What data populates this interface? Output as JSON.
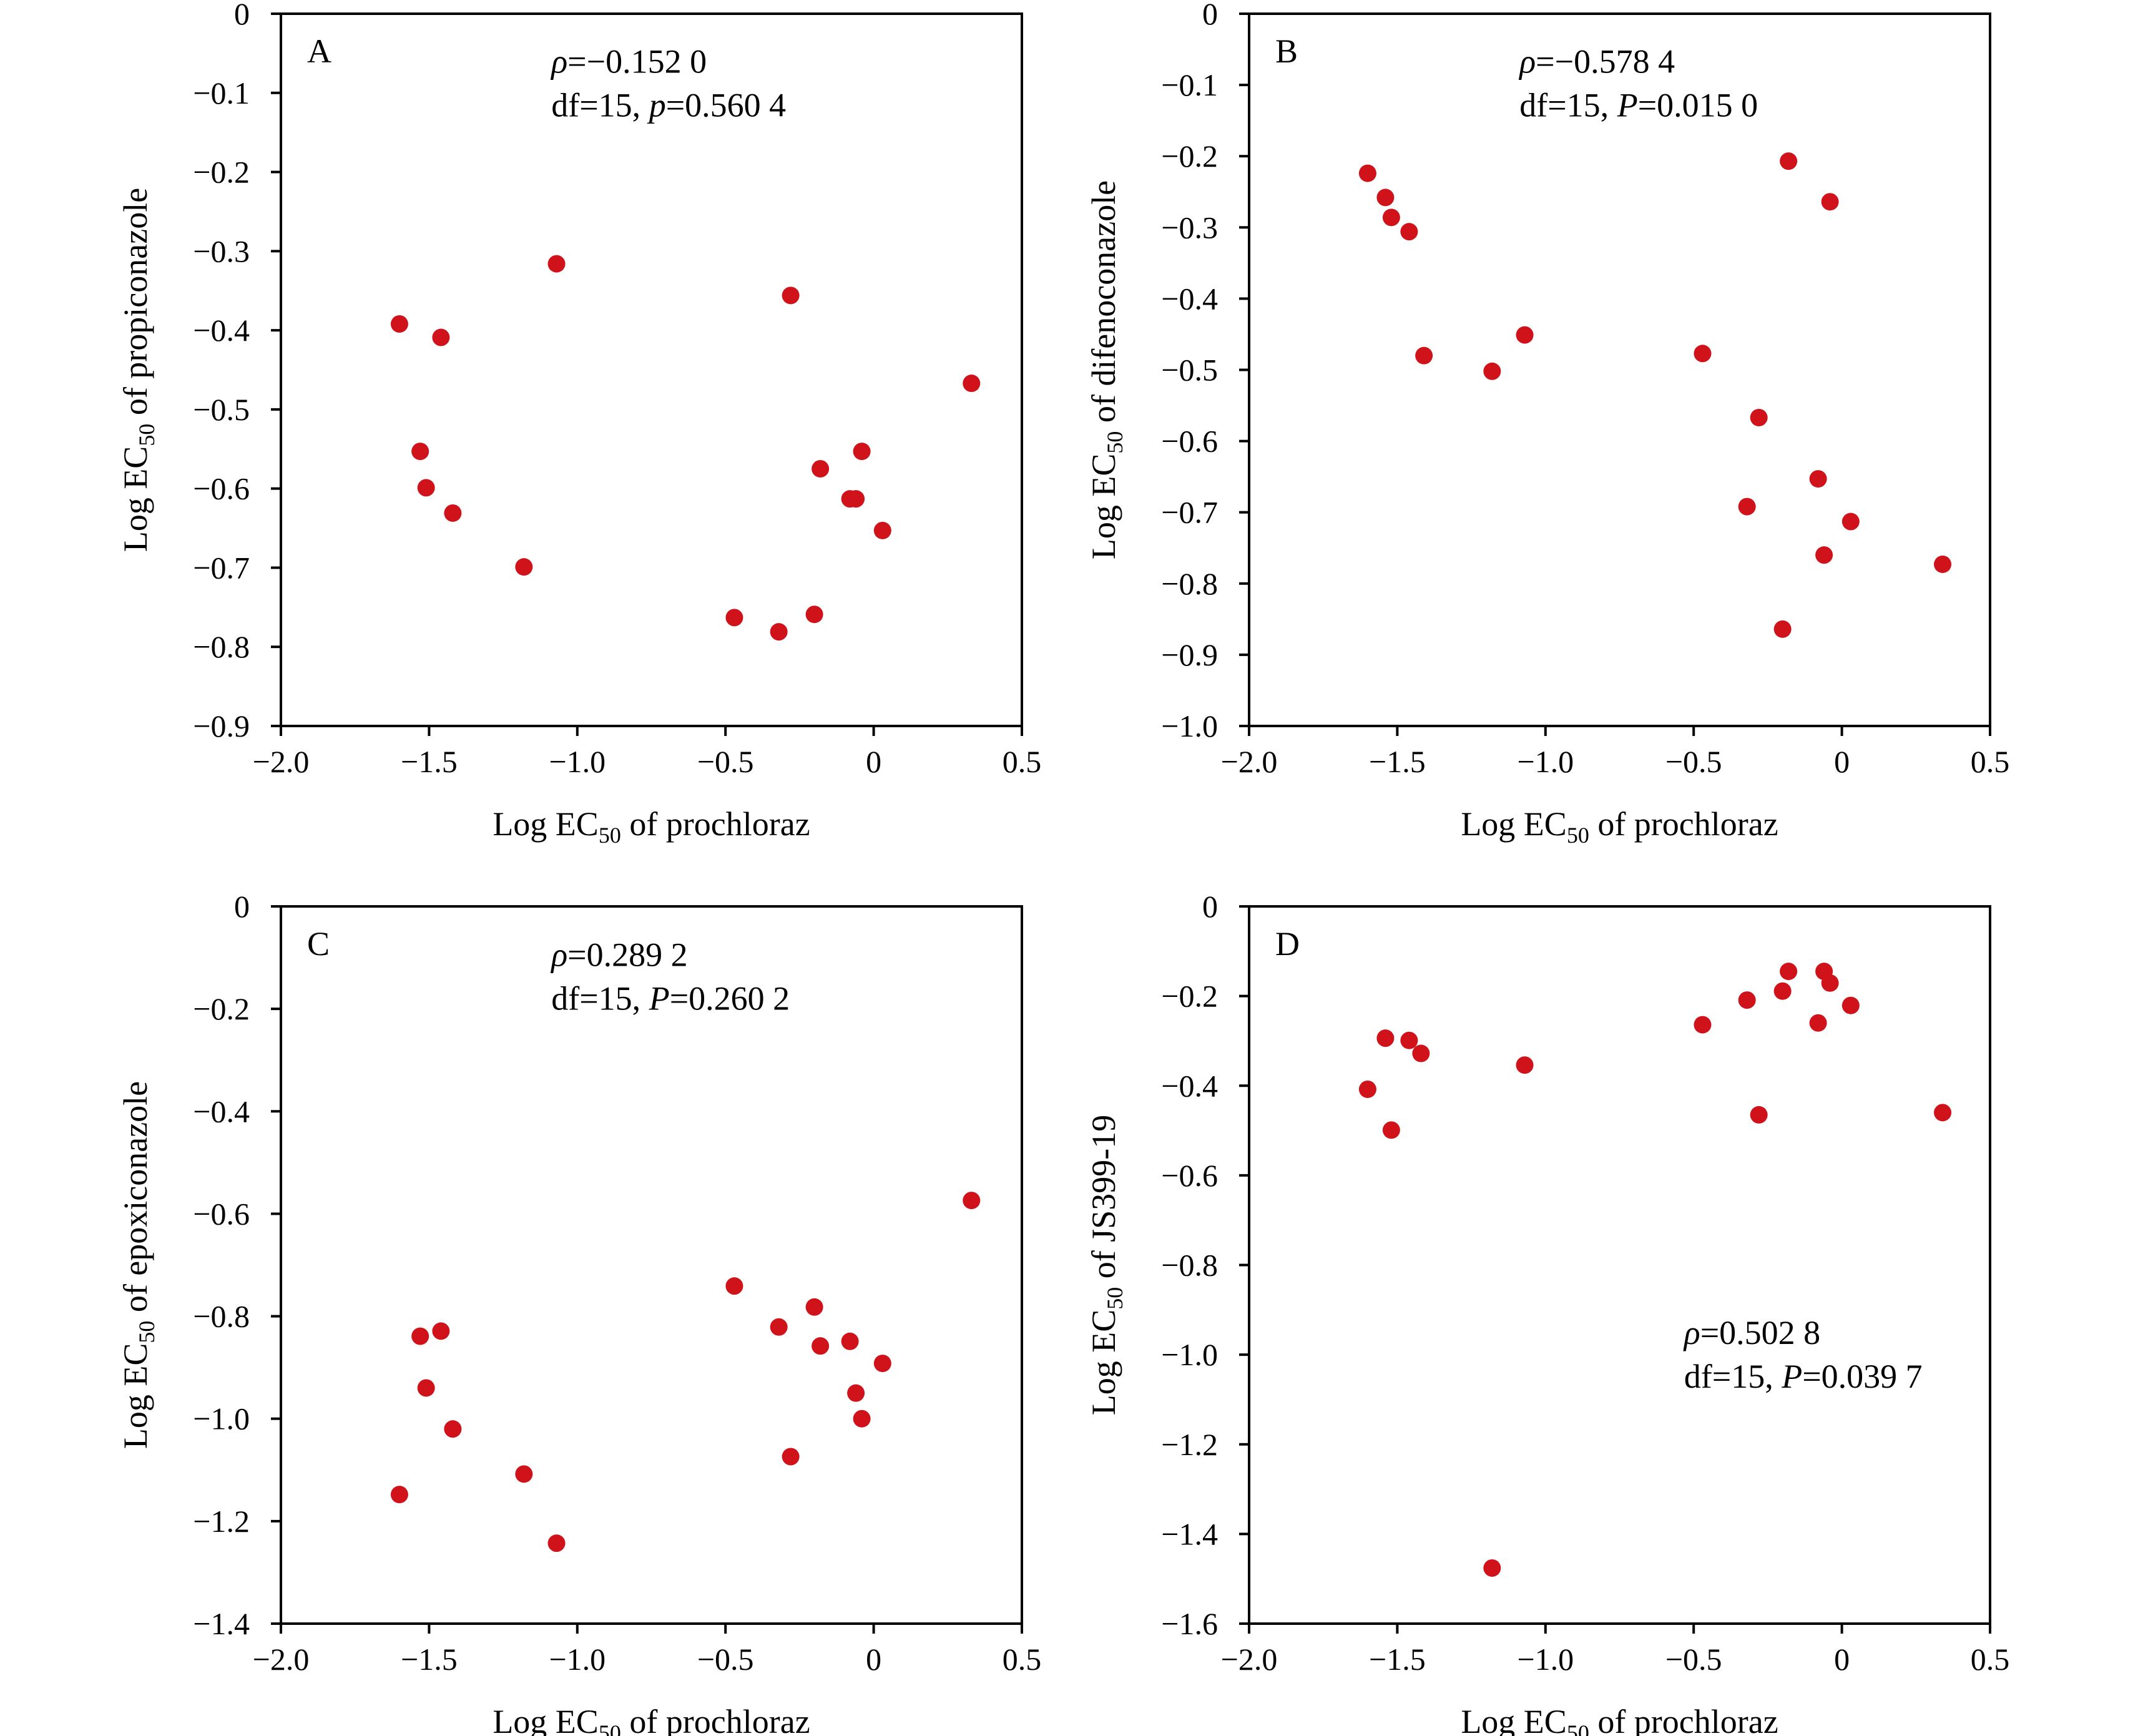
{
  "point_color": "#d0121b",
  "chart_data": [
    {
      "type": "scatter",
      "panel": "A",
      "xlabel": "Log EC50 of prochloraz",
      "ylabel": "Log EC50 of propiconazole",
      "xlim": [
        -2.0,
        0.5
      ],
      "ylim": [
        -0.9,
        0
      ],
      "xticks": [
        -2.0,
        -1.5,
        -1.0,
        -0.5,
        0,
        0.5
      ],
      "xtick_labels": [
        "−2.0",
        "−1.5",
        "−1.0",
        "−0.5",
        "0",
        "0.5"
      ],
      "yticks": [
        0,
        -0.1,
        -0.2,
        -0.3,
        -0.4,
        -0.5,
        -0.6,
        -0.7,
        -0.8,
        -0.9
      ],
      "ytick_labels": [
        "0",
        "−0.1",
        "−0.2",
        "−0.3",
        "−0.4",
        "−0.5",
        "−0.6",
        "−0.7",
        "−0.8",
        "−0.9"
      ],
      "stats": {
        "rho_sym": "ρ",
        "rho_rest": "=−0.152 0",
        "df_text": "df=15, ",
        "p_sym": "p",
        "p_rest": "=0.560 4",
        "anchor": "top-center"
      },
      "points": [
        {
          "x": -1.6,
          "y": -0.392
        },
        {
          "x": -1.46,
          "y": -0.409
        },
        {
          "x": -1.53,
          "y": -0.553
        },
        {
          "x": -1.51,
          "y": -0.599
        },
        {
          "x": -1.42,
          "y": -0.631
        },
        {
          "x": -1.18,
          "y": -0.699
        },
        {
          "x": -1.07,
          "y": -0.316
        },
        {
          "x": -0.47,
          "y": -0.763
        },
        {
          "x": -0.32,
          "y": -0.781
        },
        {
          "x": -0.28,
          "y": -0.356
        },
        {
          "x": -0.2,
          "y": -0.759
        },
        {
          "x": -0.18,
          "y": -0.575
        },
        {
          "x": -0.08,
          "y": -0.613
        },
        {
          "x": -0.06,
          "y": -0.613
        },
        {
          "x": -0.04,
          "y": -0.553
        },
        {
          "x": 0.03,
          "y": -0.653
        },
        {
          "x": 0.33,
          "y": -0.467
        }
      ]
    },
    {
      "type": "scatter",
      "panel": "B",
      "xlabel": "Log EC50 of prochloraz",
      "ylabel": "Log EC50 of difenoconazole",
      "xlim": [
        -2.0,
        0.5
      ],
      "ylim": [
        -1.0,
        0
      ],
      "xticks": [
        -2.0,
        -1.5,
        -1.0,
        -0.5,
        0,
        0.5
      ],
      "xtick_labels": [
        "−2.0",
        "−1.5",
        "−1.0",
        "−0.5",
        "0",
        "0.5"
      ],
      "yticks": [
        0,
        -0.1,
        -0.2,
        -0.3,
        -0.4,
        -0.5,
        -0.6,
        -0.7,
        -0.8,
        -0.9,
        -1.0
      ],
      "ytick_labels": [
        "0",
        "−0.1",
        "−0.2",
        "−0.3",
        "−0.4",
        "−0.5",
        "−0.6",
        "−0.7",
        "−0.8",
        "−0.9",
        "−1.0"
      ],
      "stats": {
        "rho_sym": "ρ",
        "rho_rest": "=−0.578 4",
        "df_text": "df=15, ",
        "p_sym": "P",
        "p_rest": "=0.015 0",
        "anchor": "top-center"
      },
      "points": [
        {
          "x": -1.6,
          "y": -0.224
        },
        {
          "x": -1.54,
          "y": -0.258
        },
        {
          "x": -1.52,
          "y": -0.286
        },
        {
          "x": -1.46,
          "y": -0.306
        },
        {
          "x": -1.41,
          "y": -0.48
        },
        {
          "x": -1.18,
          "y": -0.502
        },
        {
          "x": -1.07,
          "y": -0.451
        },
        {
          "x": -0.47,
          "y": -0.477
        },
        {
          "x": -0.32,
          "y": -0.692
        },
        {
          "x": -0.28,
          "y": -0.567
        },
        {
          "x": -0.2,
          "y": -0.864
        },
        {
          "x": -0.18,
          "y": -0.207
        },
        {
          "x": -0.08,
          "y": -0.653
        },
        {
          "x": -0.06,
          "y": -0.76
        },
        {
          "x": -0.04,
          "y": -0.264
        },
        {
          "x": 0.03,
          "y": -0.713
        },
        {
          "x": 0.34,
          "y": -0.773
        }
      ]
    },
    {
      "type": "scatter",
      "panel": "C",
      "xlabel": "Log EC50 of prochloraz",
      "ylabel": "Log EC50 of epoxiconazole",
      "xlim": [
        -2.0,
        0.5
      ],
      "ylim": [
        -1.4,
        0
      ],
      "xticks": [
        -2.0,
        -1.5,
        -1.0,
        -0.5,
        0,
        0.5
      ],
      "xtick_labels": [
        "−2.0",
        "−1.5",
        "−1.0",
        "−0.5",
        "0",
        "0.5"
      ],
      "yticks": [
        0,
        -0.2,
        -0.4,
        -0.6,
        -0.8,
        -1.0,
        -1.2,
        -1.4
      ],
      "ytick_labels": [
        "0",
        "−0.2",
        "−0.4",
        "−0.6",
        "−0.8",
        "−1.0",
        "−1.2",
        "−1.4"
      ],
      "stats": {
        "rho_sym": "ρ",
        "rho_rest": "=0.289 2",
        "df_text": "df=15, ",
        "p_sym": "P",
        "p_rest": "=0.260 2",
        "anchor": "top-center"
      },
      "points": [
        {
          "x": -1.6,
          "y": -1.148
        },
        {
          "x": -1.53,
          "y": -0.839
        },
        {
          "x": -1.51,
          "y": -0.94
        },
        {
          "x": -1.46,
          "y": -0.829
        },
        {
          "x": -1.42,
          "y": -1.02
        },
        {
          "x": -1.18,
          "y": -1.108
        },
        {
          "x": -1.07,
          "y": -1.243
        },
        {
          "x": -0.47,
          "y": -0.741
        },
        {
          "x": -0.32,
          "y": -0.821
        },
        {
          "x": -0.28,
          "y": -1.074
        },
        {
          "x": -0.2,
          "y": -0.782
        },
        {
          "x": -0.18,
          "y": -0.858
        },
        {
          "x": -0.08,
          "y": -0.849
        },
        {
          "x": -0.06,
          "y": -0.95
        },
        {
          "x": -0.04,
          "y": -1.0
        },
        {
          "x": 0.03,
          "y": -0.892
        },
        {
          "x": 0.33,
          "y": -0.574
        }
      ]
    },
    {
      "type": "scatter",
      "panel": "D",
      "xlabel": "Log EC50 of prochloraz",
      "ylabel": "Log EC50 of JS399-19",
      "xlim": [
        -2.0,
        0.5
      ],
      "ylim": [
        -1.6,
        0
      ],
      "xticks": [
        -2.0,
        -1.5,
        -1.0,
        -0.5,
        0,
        0.5
      ],
      "xtick_labels": [
        "−2.0",
        "−1.5",
        "−1.0",
        "−0.5",
        "0",
        "0.5"
      ],
      "yticks": [
        0,
        -0.2,
        -0.4,
        -0.6,
        -0.8,
        -1.0,
        -1.2,
        -1.4,
        -1.6
      ],
      "ytick_labels": [
        "0",
        "−0.2",
        "−0.4",
        "−0.6",
        "−0.8",
        "−1.0",
        "−1.2",
        "−1.4",
        "−1.6"
      ],
      "stats": {
        "rho_sym": "ρ",
        "rho_rest": "=0.502 8",
        "df_text": "df=15, ",
        "p_sym": "P",
        "p_rest": "=0.039 7",
        "anchor": "middle-right"
      },
      "points": [
        {
          "x": -1.6,
          "y": -0.408
        },
        {
          "x": -1.54,
          "y": -0.294
        },
        {
          "x": -1.52,
          "y": -0.499
        },
        {
          "x": -1.46,
          "y": -0.299
        },
        {
          "x": -1.42,
          "y": -0.328
        },
        {
          "x": -1.18,
          "y": -1.476
        },
        {
          "x": -1.07,
          "y": -0.354
        },
        {
          "x": -0.47,
          "y": -0.264
        },
        {
          "x": -0.32,
          "y": -0.209
        },
        {
          "x": -0.28,
          "y": -0.465
        },
        {
          "x": -0.2,
          "y": -0.189
        },
        {
          "x": -0.18,
          "y": -0.145
        },
        {
          "x": -0.08,
          "y": -0.26
        },
        {
          "x": -0.06,
          "y": -0.145
        },
        {
          "x": -0.04,
          "y": -0.171
        },
        {
          "x": 0.03,
          "y": -0.221
        },
        {
          "x": 0.34,
          "y": -0.46
        }
      ]
    }
  ]
}
